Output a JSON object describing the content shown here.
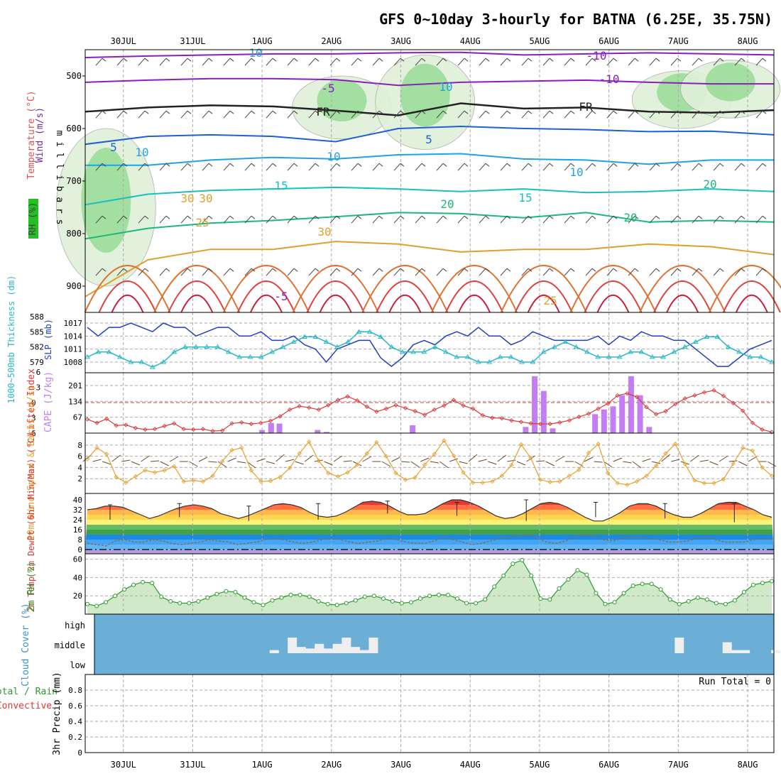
{
  "title": "GFS 0~10day 3-hourly for BATNA (6.25E, 35.75N)",
  "dates": [
    "30JUL",
    "31JUL",
    "1AUG",
    "2AUG",
    "3AUG",
    "4AUG",
    "5AUG",
    "6AUG",
    "7AUG",
    "8AUG"
  ],
  "colors": {
    "grid": "#aaaaaa",
    "cloud_bg": "#6baed6",
    "cloud_bar": "#eeeeee",
    "slp": "#1f3fbf",
    "thickness": "#2ab7c8",
    "lifted": "#d93a3a",
    "cape": "#c27ef2",
    "wind10": "#e8a030",
    "rh2m_line": "#2e9a2e",
    "rh2m_fill": "#cfe9c9",
    "dewpt": "#8a6f4a"
  },
  "chart_data": [
    {
      "type": "area",
      "panel": "cross_section",
      "ylabel_wind": "Wind (m/s)",
      "ylabel_temp": "Temperature (°C)",
      "ylabel_rh": "RH (%)",
      "ylabel_axis": "m i l l i b a r s",
      "y_ticks": [
        500,
        600,
        700,
        800,
        900
      ],
      "ylim": [
        450,
        950
      ],
      "contour_labels": [
        "-10",
        "-5",
        "FR",
        "5",
        "10",
        "15",
        "20",
        "25",
        "30",
        "-5",
        "-10",
        "FR",
        "10",
        "15",
        "20",
        "25",
        "5",
        "10",
        "30",
        "20",
        "30",
        "10",
        "10"
      ],
      "isotherms": [
        {
          "label": "-10",
          "pressure": [
            465,
            462,
            460,
            458,
            458,
            456,
            455,
            460,
            458,
            456,
            458,
            460
          ]
        },
        {
          "label": "-5",
          "pressure": [
            512,
            508,
            505,
            505,
            507,
            518,
            512,
            510,
            508,
            512,
            515,
            515
          ]
        },
        {
          "label": "FR",
          "pressure": [
            568,
            560,
            556,
            558,
            566,
            575,
            552,
            562,
            560,
            568,
            570,
            565
          ]
        },
        {
          "label": "5",
          "pressure": [
            630,
            615,
            612,
            615,
            625,
            600,
            596,
            600,
            602,
            606,
            605,
            612
          ]
        },
        {
          "label": "10",
          "pressure": [
            670,
            670,
            660,
            655,
            658,
            650,
            648,
            658,
            660,
            668,
            660,
            660
          ]
        },
        {
          "label": "15",
          "pressure": [
            745,
            725,
            718,
            715,
            712,
            715,
            720,
            715,
            722,
            720,
            715,
            720
          ]
        },
        {
          "label": "20",
          "pressure": [
            810,
            790,
            780,
            775,
            768,
            760,
            762,
            770,
            760,
            778,
            775,
            778
          ]
        },
        {
          "label": "25",
          "pressure": [
            920,
            850,
            830,
            830,
            815,
            820,
            835,
            830,
            830,
            820,
            825,
            840
          ]
        }
      ],
      "moist_regions": [
        {
          "day": 0.3,
          "pressure_top": 600,
          "pressure_bottom": 900
        },
        {
          "day": 3.7,
          "pressure_top": 500,
          "pressure_bottom": 620
        },
        {
          "day": 4.9,
          "pressure_top": 460,
          "pressure_bottom": 640
        },
        {
          "day": 8.6,
          "pressure_top": 490,
          "pressure_bottom": 600
        },
        {
          "day": 9.3,
          "pressure_top": 470,
          "pressure_bottom": 580
        }
      ]
    },
    {
      "type": "line",
      "panel": "slp_thickness",
      "ylabel_left": "1000~500mb Thickness (dm)",
      "ylabel_right": "SLP (mb)",
      "left_ticks": [
        579,
        582,
        585,
        588
      ],
      "right_ticks": [
        1008,
        1011,
        1014,
        1017
      ],
      "series": [
        {
          "name": "SLP",
          "axis": "right",
          "values": [
            1016,
            1014,
            1016,
            1016,
            1017,
            1016,
            1015,
            1017,
            1016,
            1016,
            1014,
            1015,
            1016,
            1016,
            1014,
            1014,
            1015,
            1013,
            1013,
            1014,
            1012,
            1011,
            1008,
            1011,
            1012,
            1013,
            1013,
            1009,
            1007,
            1009,
            1012,
            1013,
            1012,
            1014,
            1015,
            1014,
            1016,
            1014,
            1014,
            1012,
            1013,
            1015,
            1014,
            1013,
            1013,
            1013,
            1013,
            1014,
            1012,
            1014,
            1013,
            1015,
            1014,
            1014,
            1013,
            1013,
            1011,
            1009,
            1007,
            1007,
            1009,
            1011,
            1012,
            1013
          ]
        },
        {
          "name": "Thickness",
          "axis": "left",
          "values": [
            580,
            581,
            581,
            580,
            579,
            579,
            578,
            579,
            581,
            582,
            582,
            582,
            582,
            581,
            580,
            580,
            580,
            581,
            582,
            583,
            584,
            584,
            583,
            582,
            583,
            585,
            585,
            584,
            582,
            581,
            581,
            581,
            582,
            581,
            580,
            580,
            579,
            579,
            580,
            580,
            579,
            579,
            581,
            582,
            583,
            582,
            581,
            580,
            580,
            580,
            581,
            581,
            580,
            580,
            581,
            582,
            583,
            584,
            584,
            582,
            581,
            580,
            580,
            579
          ]
        }
      ]
    },
    {
      "type": "bar",
      "panel": "cape_lifted",
      "ylabel_left": "Lifted Index",
      "ylabel_right": "CAPE (J/kg)",
      "lifted_ticks": [
        "-6",
        "-3",
        "0",
        "3",
        "6"
      ],
      "cape_ticks": [
        67,
        134,
        201
      ],
      "lifted_index": [
        3.3,
        4.0,
        3.2,
        4.5,
        4.4,
        5.0,
        5.3,
        5.2,
        4.6,
        4.1,
        5.2,
        5.3,
        5.2,
        5.6,
        5.5,
        4.1,
        3.9,
        4.2,
        4.0,
        3.6,
        2.7,
        1.4,
        0.7,
        1.0,
        1.4,
        0.5,
        -0.5,
        -1.2,
        -0.4,
        0.8,
        1.8,
        1.2,
        0.5,
        1.1,
        1.7,
        2.4,
        1.4,
        0.6,
        -0.5,
        0.6,
        1.2,
        2.5,
        3.0,
        3.1,
        3.5,
        3.8,
        4.1,
        4.2,
        4.2,
        3.9,
        3.5,
        2.8,
        2.2,
        1.2,
        0.2,
        -1.4,
        -1.8,
        -1.1,
        0.9,
        2.3,
        1.7,
        0.3,
        -0.8,
        -1.4,
        -2.0,
        -2.4,
        -1.3,
        0.1,
        1.6,
        4.0,
        5.3,
        5.8
      ],
      "cape_bars": [
        {
          "day": 2.55,
          "value": 13
        },
        {
          "day": 2.68,
          "value": 43
        },
        {
          "day": 2.8,
          "value": 40
        },
        {
          "day": 3.35,
          "value": 13
        },
        {
          "day": 3.48,
          "value": 5
        },
        {
          "day": 4.72,
          "value": 33
        },
        {
          "day": 6.35,
          "value": 26
        },
        {
          "day": 6.48,
          "value": 240
        },
        {
          "day": 6.61,
          "value": 178
        },
        {
          "day": 6.74,
          "value": 20
        },
        {
          "day": 7.35,
          "value": 80
        },
        {
          "day": 7.48,
          "value": 100
        },
        {
          "day": 7.61,
          "value": 113
        },
        {
          "day": 7.74,
          "value": 160
        },
        {
          "day": 7.87,
          "value": 240
        },
        {
          "day": 8.0,
          "value": 160
        },
        {
          "day": 8.13,
          "value": 26
        }
      ]
    },
    {
      "type": "line",
      "panel": "wind10m",
      "ylabel": "10m Wind Speed & Barbs (m/s)",
      "y_ticks": [
        2,
        4,
        6,
        8
      ],
      "values": [
        5.5,
        7.5,
        6.4,
        2.3,
        1.3,
        2.4,
        3.5,
        3.1,
        3.5,
        4.2,
        1.5,
        1.7,
        1.5,
        2.5,
        5.1,
        7.1,
        7.5,
        3.5,
        1.5,
        1.6,
        2.3,
        3.9,
        6.5,
        8.6,
        5.2,
        3.0,
        2.4,
        3.1,
        4.5,
        6.5,
        8.5,
        6.0,
        3.0,
        1.8,
        2.2,
        4.5,
        6.4,
        8.8,
        6.1,
        3.1,
        1.3,
        1.3,
        1.5,
        2.5,
        4.4,
        8.1,
        5.7,
        1.8,
        1.4,
        1.5,
        2.5,
        3.6,
        6.6,
        8.2,
        3.0,
        1.2,
        0.9,
        1.5,
        2.5,
        4.3,
        6.5,
        8.2,
        4.6,
        1.7,
        1.2,
        1.2,
        1.9,
        4.7,
        7.5,
        7.0,
        4.0,
        2.5
      ]
    },
    {
      "type": "area",
      "panel": "temp2m",
      "ylabel": "2m Temp 2m DewPt (6hr Min/Max) (°C)",
      "y_ticks": [
        0,
        8,
        16,
        24,
        32,
        40
      ],
      "temperature": [
        32,
        33,
        35,
        35,
        34,
        31,
        28,
        25,
        27,
        30,
        33,
        35,
        36,
        35,
        33,
        29,
        27,
        25,
        27,
        30,
        33,
        36,
        37,
        36,
        34,
        30,
        27,
        26,
        27,
        30,
        34,
        38,
        39,
        38,
        35,
        31,
        28,
        28,
        29,
        33,
        37,
        40,
        40,
        38,
        35,
        31,
        27,
        25,
        26,
        29,
        33,
        37,
        38,
        37,
        34,
        30,
        26,
        23,
        23,
        26,
        30,
        35,
        37,
        37,
        35,
        31,
        28,
        26,
        26,
        29,
        33,
        37,
        38,
        38,
        35,
        32,
        28,
        26
      ],
      "dewpoint": [
        5,
        4,
        3,
        7,
        8,
        6,
        6,
        8,
        7,
        5,
        4,
        5,
        6,
        8,
        7,
        6,
        4,
        5,
        6,
        8,
        9,
        8,
        6,
        5,
        6,
        8,
        9,
        8,
        6,
        5,
        6,
        7,
        9,
        8,
        6,
        5,
        5,
        7,
        10,
        8,
        6,
        4,
        5,
        7,
        9,
        10,
        11,
        12,
        9,
        6,
        5,
        7,
        10,
        12,
        11,
        8,
        7,
        9,
        10,
        10,
        9,
        8,
        6,
        6,
        7,
        9,
        10,
        8,
        6,
        6,
        6,
        8,
        9,
        8
      ],
      "tmin_tmax": [
        [
          24,
          36
        ],
        [
          26,
          37
        ],
        [
          23,
          35
        ],
        [
          24,
          37
        ],
        [
          29,
          39
        ],
        [
          27,
          38
        ],
        [
          23,
          40
        ],
        [
          26,
          38
        ],
        [
          25,
          37
        ],
        [
          22,
          37
        ]
      ]
    },
    {
      "type": "area",
      "panel": "rh2m",
      "ylabel": "2m RH (%)",
      "y_ticks": [
        20,
        40,
        60
      ],
      "ylim": [
        0,
        62
      ],
      "values": [
        11,
        9,
        13,
        20,
        27,
        32,
        35,
        34,
        19,
        14,
        12,
        12,
        14,
        18,
        22,
        25,
        24,
        18,
        13,
        10,
        15,
        18,
        21,
        21,
        19,
        14,
        11,
        10,
        12,
        15,
        19,
        20,
        17,
        14,
        12,
        13,
        17,
        20,
        21,
        21,
        17,
        12,
        12,
        16,
        30,
        42,
        55,
        59,
        42,
        17,
        16,
        28,
        38,
        48,
        43,
        23,
        11,
        13,
        23,
        31,
        33,
        33,
        27,
        16,
        11,
        14,
        18,
        16,
        12,
        11,
        15,
        24,
        32,
        34,
        36
      ]
    },
    {
      "type": "bar",
      "panel": "cloud",
      "ylabel": "Cloud Cover (%)",
      "levels": [
        "high",
        "middle",
        "low"
      ],
      "middle_cover": [
        {
          "day": 2.72,
          "value": 0.2
        },
        {
          "day": 2.98,
          "value": 1.0
        },
        {
          "day": 3.11,
          "value": 0.4
        },
        {
          "day": 3.24,
          "value": 0.3
        },
        {
          "day": 3.37,
          "value": 0.6
        },
        {
          "day": 3.5,
          "value": 0.3
        },
        {
          "day": 3.63,
          "value": 0.6
        },
        {
          "day": 3.76,
          "value": 1.0
        },
        {
          "day": 3.89,
          "value": 0.4
        },
        {
          "day": 4.02,
          "value": 0.2
        },
        {
          "day": 4.15,
          "value": 1.0
        },
        {
          "day": 8.56,
          "value": 1.0
        },
        {
          "day": 9.25,
          "value": 0.7
        },
        {
          "day": 9.38,
          "value": 0.2
        },
        {
          "day": 9.51,
          "value": 0.2
        },
        {
          "day": 9.95,
          "value": 0.2
        }
      ]
    },
    {
      "type": "bar",
      "panel": "precip",
      "ylabel_series": [
        "Total / Rain",
        "Convective"
      ],
      "ylabel": "3hr Precip (mm)",
      "y_ticks": [
        "0",
        "0.2",
        "0.4",
        "0.6",
        "0.8"
      ],
      "ylim": [
        0,
        1
      ],
      "run_total_label": "Run Total = 0",
      "values": []
    }
  ]
}
